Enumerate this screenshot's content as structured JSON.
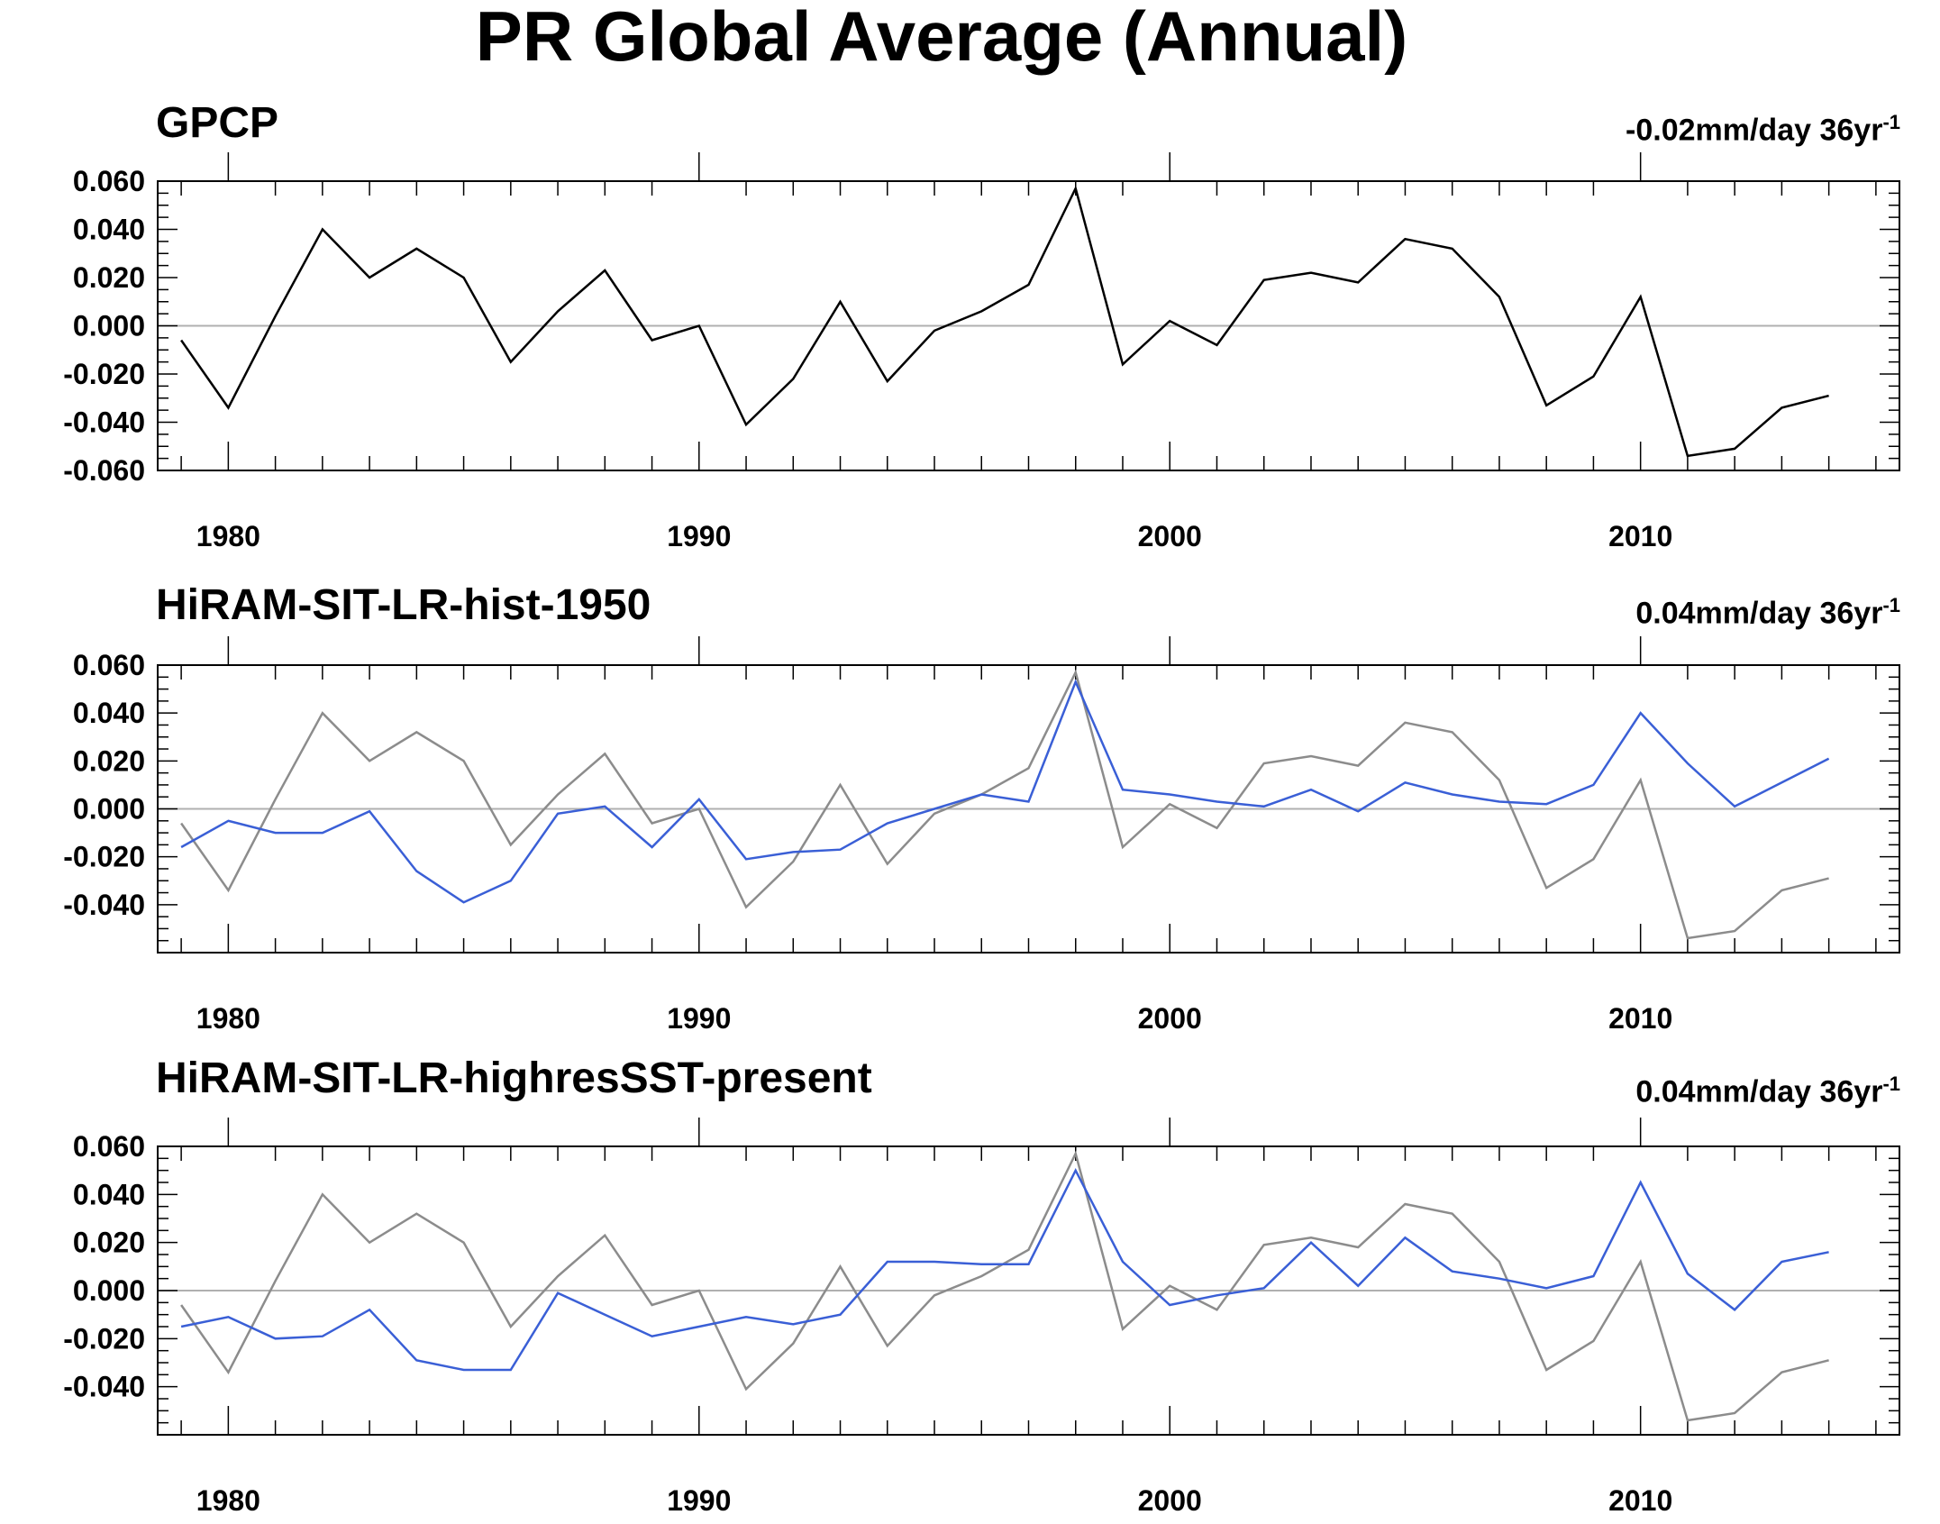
{
  "title": "PR Global Average (Annual)",
  "colors": {
    "observed": "#000000",
    "observed_overlay": "#8c8c8c",
    "model": "#3a5fd6",
    "zero_line": "#b0b0b0",
    "axis": "#000000"
  },
  "chart_data": [
    {
      "type": "line",
      "title": "GPCP",
      "trend_value": "-0.02mm/day 36yr",
      "trend_exp": "-1",
      "ylim": [
        -0.06,
        0.06
      ],
      "yticks": [
        "0.060",
        "0.040",
        "0.020",
        "0.000",
        "-0.020",
        "-0.040",
        "-0.060"
      ],
      "ytick_values": [
        0.06,
        0.04,
        0.02,
        0.0,
        -0.02,
        -0.04,
        -0.06
      ],
      "xlim": [
        1978.5,
        2015.5
      ],
      "xticks": [
        "1980",
        "1990",
        "2000",
        "2010"
      ],
      "xtick_values": [
        1980,
        1990,
        2000,
        2010
      ],
      "x": [
        1979,
        1980,
        1981,
        1982,
        1983,
        1984,
        1985,
        1986,
        1987,
        1988,
        1989,
        1990,
        1991,
        1992,
        1993,
        1994,
        1995,
        1996,
        1997,
        1998,
        1999,
        2000,
        2001,
        2002,
        2003,
        2004,
        2005,
        2006,
        2007,
        2008,
        2009,
        2010,
        2011,
        2012,
        2013,
        2014
      ],
      "series": [
        {
          "name": "GPCP",
          "role": "observed",
          "values": [
            -0.006,
            -0.034,
            0.004,
            0.04,
            0.02,
            0.032,
            0.02,
            -0.015,
            0.006,
            0.023,
            -0.006,
            0.0,
            -0.041,
            -0.022,
            0.01,
            -0.023,
            -0.002,
            0.006,
            0.017,
            0.057,
            -0.016,
            0.002,
            -0.008,
            0.019,
            0.022,
            0.018,
            0.036,
            0.032,
            0.012,
            -0.033,
            -0.021,
            0.012,
            -0.054,
            -0.051,
            -0.034,
            -0.029
          ]
        }
      ]
    },
    {
      "type": "line",
      "title": "HiRAM-SIT-LR-hist-1950",
      "trend_value": "0.04mm/day 36yr",
      "trend_exp": "-1",
      "ylim": [
        -0.06,
        0.06
      ],
      "yticks": [
        "0.060",
        "0.040",
        "0.020",
        "0.000",
        "-0.020",
        "-0.040"
      ],
      "ytick_values": [
        0.06,
        0.04,
        0.02,
        0.0,
        -0.02,
        -0.04
      ],
      "xlim": [
        1978.5,
        2015.5
      ],
      "xticks": [
        "1980",
        "1990",
        "2000",
        "2010"
      ],
      "xtick_values": [
        1980,
        1990,
        2000,
        2010
      ],
      "x": [
        1979,
        1980,
        1981,
        1982,
        1983,
        1984,
        1985,
        1986,
        1987,
        1988,
        1989,
        1990,
        1991,
        1992,
        1993,
        1994,
        1995,
        1996,
        1997,
        1998,
        1999,
        2000,
        2001,
        2002,
        2003,
        2004,
        2005,
        2006,
        2007,
        2008,
        2009,
        2010,
        2011,
        2012,
        2013,
        2014
      ],
      "series": [
        {
          "name": "GPCP",
          "role": "observed_overlay",
          "values": [
            -0.006,
            -0.034,
            0.004,
            0.04,
            0.02,
            0.032,
            0.02,
            -0.015,
            0.006,
            0.023,
            -0.006,
            0.0,
            -0.041,
            -0.022,
            0.01,
            -0.023,
            -0.002,
            0.006,
            0.017,
            0.057,
            -0.016,
            0.002,
            -0.008,
            0.019,
            0.022,
            0.018,
            0.036,
            0.032,
            0.012,
            -0.033,
            -0.021,
            0.012,
            -0.054,
            -0.051,
            -0.034,
            -0.029
          ]
        },
        {
          "name": "HiRAM-SIT-LR-hist-1950",
          "role": "model",
          "values": [
            -0.016,
            -0.005,
            -0.01,
            -0.01,
            -0.001,
            -0.026,
            -0.039,
            -0.03,
            -0.002,
            0.001,
            -0.016,
            0.004,
            -0.021,
            -0.018,
            -0.017,
            -0.006,
            0.0,
            0.006,
            0.003,
            0.053,
            0.008,
            0.006,
            0.003,
            0.001,
            0.008,
            -0.001,
            0.011,
            0.006,
            0.003,
            0.002,
            0.01,
            0.04,
            0.019,
            0.001,
            0.011,
            0.021
          ]
        }
      ]
    },
    {
      "type": "line",
      "title": "HiRAM-SIT-LR-highresSST-present",
      "trend_value": "0.04mm/day 36yr",
      "trend_exp": "-1",
      "ylim": [
        -0.06,
        0.06
      ],
      "yticks": [
        "0.060",
        "0.040",
        "0.020",
        "0.000",
        "-0.020",
        "-0.040"
      ],
      "ytick_values": [
        0.06,
        0.04,
        0.02,
        0.0,
        -0.02,
        -0.04
      ],
      "xlim": [
        1978.5,
        2015.5
      ],
      "xticks": [
        "1980",
        "1990",
        "2000",
        "2010"
      ],
      "xtick_values": [
        1980,
        1990,
        2000,
        2010
      ],
      "x": [
        1979,
        1980,
        1981,
        1982,
        1983,
        1984,
        1985,
        1986,
        1987,
        1988,
        1989,
        1990,
        1991,
        1992,
        1993,
        1994,
        1995,
        1996,
        1997,
        1998,
        1999,
        2000,
        2001,
        2002,
        2003,
        2004,
        2005,
        2006,
        2007,
        2008,
        2009,
        2010,
        2011,
        2012,
        2013,
        2014
      ],
      "series": [
        {
          "name": "GPCP",
          "role": "observed_overlay",
          "values": [
            -0.006,
            -0.034,
            0.004,
            0.04,
            0.02,
            0.032,
            0.02,
            -0.015,
            0.006,
            0.023,
            -0.006,
            0.0,
            -0.041,
            -0.022,
            0.01,
            -0.023,
            -0.002,
            0.006,
            0.017,
            0.057,
            -0.016,
            0.002,
            -0.008,
            0.019,
            0.022,
            0.018,
            0.036,
            0.032,
            0.012,
            -0.033,
            -0.021,
            0.012,
            -0.054,
            -0.051,
            -0.034,
            -0.029
          ]
        },
        {
          "name": "HiRAM-SIT-LR-highresSST-present",
          "role": "model",
          "values": [
            -0.015,
            -0.011,
            -0.02,
            -0.019,
            -0.008,
            -0.029,
            -0.033,
            -0.033,
            -0.001,
            -0.01,
            -0.019,
            -0.015,
            -0.011,
            -0.014,
            -0.01,
            0.012,
            0.012,
            0.011,
            0.011,
            0.05,
            0.012,
            -0.006,
            -0.002,
            0.001,
            0.02,
            0.002,
            0.022,
            0.008,
            0.005,
            0.001,
            0.006,
            0.045,
            0.007,
            -0.008,
            0.012,
            0.016
          ]
        }
      ]
    }
  ]
}
